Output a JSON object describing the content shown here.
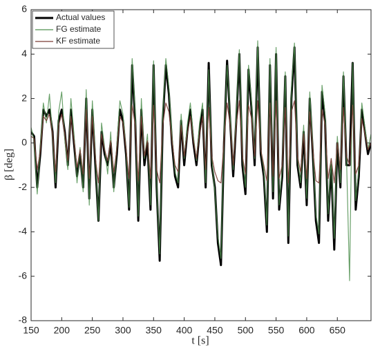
{
  "chart_data": {
    "type": "line",
    "xlabel": "t [s]",
    "ylabel": "β [deg]",
    "x": [
      150,
      155,
      160,
      165,
      170,
      175,
      180,
      185,
      190,
      195,
      200,
      205,
      210,
      215,
      220,
      225,
      230,
      235,
      240,
      245,
      250,
      255,
      260,
      265,
      270,
      275,
      280,
      285,
      290,
      295,
      300,
      305,
      310,
      315,
      320,
      325,
      330,
      335,
      340,
      345,
      350,
      355,
      360,
      365,
      370,
      375,
      380,
      385,
      390,
      395,
      400,
      405,
      410,
      415,
      420,
      425,
      430,
      435,
      440,
      445,
      450,
      455,
      460,
      465,
      470,
      475,
      480,
      485,
      490,
      495,
      500,
      505,
      510,
      515,
      520,
      525,
      530,
      535,
      540,
      545,
      550,
      555,
      560,
      565,
      570,
      575,
      580,
      585,
      590,
      595,
      600,
      605,
      610,
      615,
      620,
      625,
      630,
      635,
      640,
      645,
      650,
      655,
      660,
      665,
      670,
      675,
      680,
      685,
      690,
      695,
      700,
      705
    ],
    "series": [
      {
        "name": "Actual values",
        "color": "#000000",
        "values": [
          0.5,
          0.3,
          -2,
          -0.5,
          1.5,
          1.2,
          1.5,
          0.5,
          -2,
          1,
          1.5,
          0.5,
          -1,
          1.5,
          0,
          -1.5,
          -0.5,
          -2,
          2,
          -2.5,
          1.5,
          -1,
          -3.5,
          0.5,
          -0.5,
          -1,
          0,
          -2,
          -0.5,
          1.5,
          1,
          -0.5,
          -3,
          3.5,
          1,
          -3.5,
          1.5,
          -1,
          0,
          -3,
          3.5,
          -2,
          -5.3,
          1,
          3.5,
          2.2,
          0,
          -1.5,
          -2,
          1,
          -1,
          0.5,
          1.5,
          0,
          -1,
          0.5,
          1.5,
          -2,
          3.6,
          -1,
          -2,
          -4.5,
          -5.5,
          0,
          3.7,
          1,
          -1.5,
          1,
          4,
          -1,
          -2.3,
          3.3,
          1.5,
          -1,
          4.3,
          -0.5,
          -1.5,
          -4,
          3.5,
          -2.5,
          4,
          -3,
          -1.5,
          3,
          -4.5,
          2,
          4.3,
          -1,
          -2,
          0.5,
          -2.8,
          2,
          -0.5,
          -3.5,
          -4.5,
          2.3,
          1,
          -3.5,
          -1,
          -4.8,
          0,
          -2,
          3,
          -1,
          -1,
          3.6,
          -3,
          -1.5,
          1.5,
          0.5,
          -0.5,
          0
        ]
      },
      {
        "name": "FG estimate",
        "color": "#4f8f4f",
        "values": [
          0.7,
          0.1,
          -2.3,
          -0.2,
          1.8,
          0.9,
          2.2,
          0.3,
          -1.8,
          1.4,
          2.3,
          0.2,
          -1.2,
          2.0,
          0.4,
          -1.8,
          -0.2,
          -2.2,
          2.4,
          -2.8,
          1.9,
          -0.6,
          -3.5,
          0.9,
          -0.2,
          -1.4,
          0.5,
          -2.2,
          -0.1,
          1.9,
          1.3,
          -0.3,
          -2.9,
          3.8,
          1.4,
          -3.3,
          2.0,
          -0.7,
          0.4,
          -2.8,
          3.7,
          -1.8,
          -5.0,
          1.3,
          3.8,
          2.5,
          0.3,
          -1.3,
          -1.8,
          1.3,
          -0.7,
          0.8,
          1.8,
          0.3,
          -0.8,
          0.9,
          1.8,
          -1.8,
          3.3,
          -0.7,
          -2.2,
          -4.2,
          -5.2,
          0.3,
          3.5,
          1.3,
          -1.2,
          1.3,
          4.2,
          -0.6,
          -2.0,
          3.5,
          1.8,
          -0.7,
          4.6,
          -0.3,
          -1.2,
          -3.7,
          3.8,
          -2.2,
          4.3,
          -2.8,
          -1.2,
          3.2,
          -4.2,
          2.4,
          4.5,
          -0.7,
          -1.8,
          0.8,
          -2.5,
          2.3,
          -0.2,
          -3.2,
          -4.1,
          2.6,
          1.3,
          -3.2,
          -0.7,
          -4.3,
          0.3,
          -1.8,
          3.2,
          -0.7,
          -6.2,
          3.6,
          -2.6,
          -1.2,
          1.8,
          0.7,
          -0.3,
          0.4
        ]
      },
      {
        "name": "KF estimate",
        "color": "#7a3b34",
        "values": [
          0.3,
          0.2,
          -1.2,
          -0.4,
          1.2,
          1.0,
          1.3,
          0.4,
          -1.3,
          0.8,
          1.3,
          0.4,
          -0.8,
          1.2,
          0.1,
          -1.1,
          -0.3,
          -1.4,
          1.5,
          -1.6,
          1.2,
          -0.7,
          -1.8,
          0.4,
          -0.3,
          -0.8,
          0.1,
          -1.3,
          -0.3,
          1.2,
          0.9,
          -0.3,
          -1.6,
          1.7,
          0.8,
          -1.7,
          1.2,
          -0.6,
          0.1,
          -1.6,
          1.7,
          -1.2,
          -1.8,
          0.8,
          1.8,
          1.4,
          0.1,
          -1.0,
          -1.3,
          0.8,
          -0.6,
          0.4,
          1.2,
          0.1,
          -0.7,
          0.4,
          1.2,
          -1.2,
          1.6,
          -0.6,
          -1.3,
          -1.7,
          -1.8,
          0.1,
          1.8,
          0.8,
          -1.0,
          0.8,
          1.9,
          -0.6,
          -1.4,
          1.7,
          1.1,
          -0.6,
          1.9,
          -0.3,
          -1.0,
          -1.7,
          1.8,
          -1.5,
          1.9,
          -1.6,
          -1.0,
          1.6,
          -1.8,
          1.4,
          1.9,
          -0.6,
          -1.3,
          0.4,
          -1.6,
          1.4,
          -0.3,
          -1.7,
          -1.8,
          1.5,
          0.8,
          -1.6,
          -0.7,
          -1.8,
          0.0,
          -1.2,
          1.6,
          -0.6,
          -1.0,
          1.7,
          -1.4,
          -1.0,
          1.1,
          0.4,
          -0.3,
          0.0
        ]
      }
    ],
    "xlim": [
      150,
      705
    ],
    "ylim": [
      -8,
      6
    ],
    "xticks": [
      150,
      200,
      250,
      300,
      350,
      400,
      450,
      500,
      550,
      600,
      650
    ],
    "yticks": [
      -8,
      -6,
      -4,
      -2,
      0,
      2,
      4,
      6
    ],
    "legend": "upper left"
  }
}
